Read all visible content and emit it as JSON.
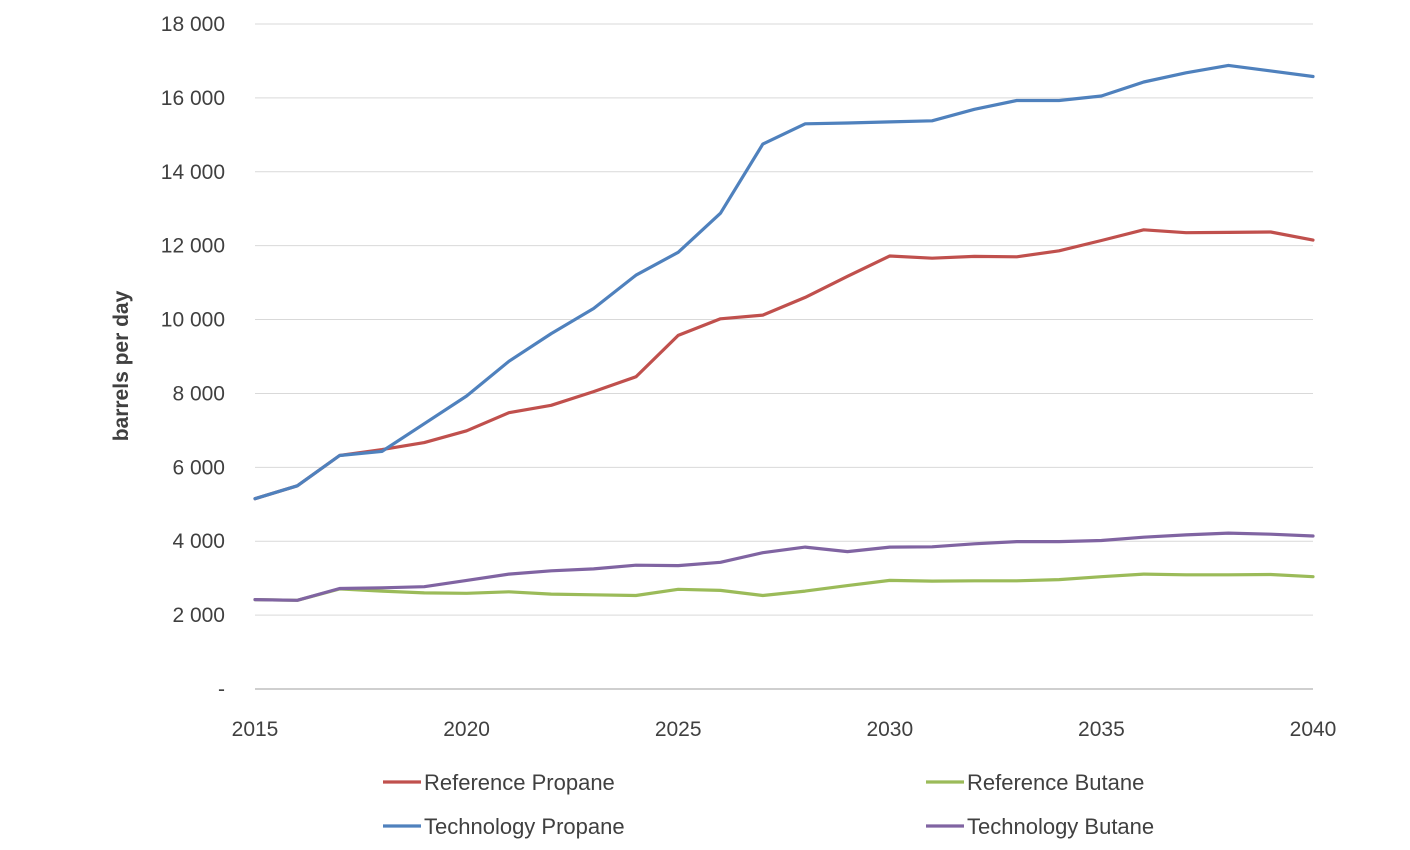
{
  "chart_data": {
    "type": "line",
    "ylabel": "barrels per day",
    "xlabel": "",
    "xlim": [
      2015,
      2040
    ],
    "ylim": [
      0,
      18000
    ],
    "grid": true,
    "legend_position": "bottom",
    "x_ticks": [
      2015,
      2020,
      2025,
      2030,
      2035,
      2040
    ],
    "x_tick_labels": [
      "2015",
      "2020",
      "2025",
      "2030",
      "2035",
      "2040"
    ],
    "y_ticks": [
      0,
      2000,
      4000,
      6000,
      8000,
      10000,
      12000,
      14000,
      16000,
      18000
    ],
    "y_tick_labels": [
      "-",
      "2 000",
      "4 000",
      "6 000",
      "8 000",
      "10 000",
      "12 000",
      "14 000",
      "16 000",
      "18 000"
    ],
    "x": [
      2015,
      2016,
      2017,
      2018,
      2019,
      2020,
      2021,
      2022,
      2023,
      2024,
      2025,
      2026,
      2027,
      2028,
      2029,
      2030,
      2031,
      2032,
      2033,
      2034,
      2035,
      2036,
      2037,
      2038,
      2039,
      2040
    ],
    "series": [
      {
        "name": "Reference Propane",
        "color": "#c0504d",
        "values": [
          5150,
          5500,
          6320,
          6480,
          6670,
          6990,
          7480,
          7680,
          8050,
          8450,
          9570,
          10020,
          10120,
          10600,
          11170,
          11720,
          11660,
          11710,
          11700,
          11860,
          12140,
          12430,
          12350,
          12360,
          12370,
          12150
        ]
      },
      {
        "name": "Technology Propane",
        "color": "#4f81bd",
        "values": [
          5150,
          5500,
          6320,
          6430,
          7180,
          7930,
          8870,
          9620,
          10300,
          11200,
          11820,
          12880,
          14750,
          15300,
          15320,
          15350,
          15380,
          15690,
          15930,
          15930,
          16050,
          16430,
          16680,
          16880,
          16730,
          16580
        ]
      },
      {
        "name": "Reference Butane",
        "color": "#9bbb59",
        "values": [
          2420,
          2400,
          2710,
          2650,
          2600,
          2590,
          2630,
          2570,
          2550,
          2530,
          2700,
          2670,
          2530,
          2650,
          2800,
          2940,
          2920,
          2930,
          2930,
          2960,
          3040,
          3110,
          3090,
          3090,
          3100,
          3040
        ]
      },
      {
        "name": "Technology Butane",
        "color": "#8064a2",
        "values": [
          2420,
          2400,
          2720,
          2740,
          2770,
          2940,
          3110,
          3200,
          3250,
          3350,
          3340,
          3430,
          3690,
          3840,
          3720,
          3840,
          3850,
          3930,
          3990,
          3990,
          4020,
          4110,
          4170,
          4220,
          4190,
          4140
        ]
      }
    ],
    "legend_order": [
      "Reference Propane",
      "Reference Butane",
      "Technology Propane",
      "Technology Butane"
    ]
  }
}
